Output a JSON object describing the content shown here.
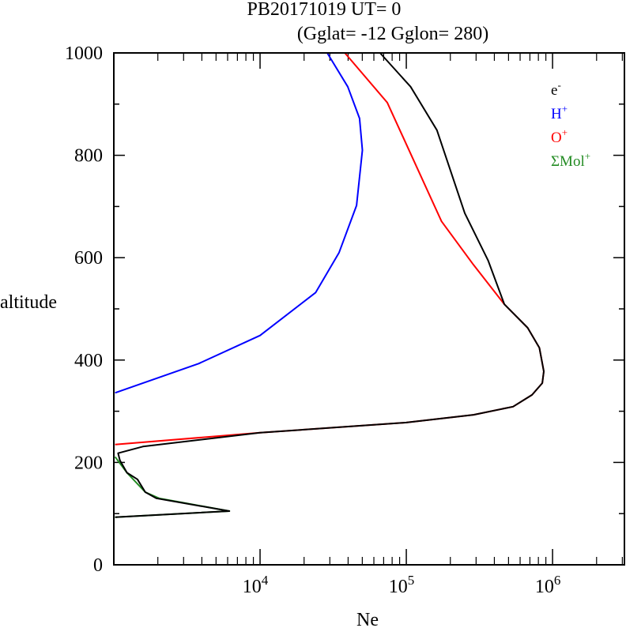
{
  "chart_data": {
    "type": "line",
    "title": "PB20171019   UT=  0",
    "subtitle": "(Gglat= -12   Gglon=  280)",
    "xlabel": "Ne",
    "ylabel": "altitude",
    "xscale": "log",
    "xlim": [
      1000,
      3100000
    ],
    "ylim": [
      0,
      1000
    ],
    "x_ticks": [
      {
        "value": 10000,
        "base": "10",
        "exp": "4"
      },
      {
        "value": 100000,
        "base": "10",
        "exp": "5"
      },
      {
        "value": 1000000,
        "base": "10",
        "exp": "6"
      }
    ],
    "y_ticks": [
      0,
      200,
      400,
      600,
      800,
      1000
    ],
    "legend_position": "top-right",
    "series": [
      {
        "name": "e",
        "sup": "-",
        "color": "#000000",
        "points": [
          [
            1020,
            93
          ],
          [
            6170,
            105
          ],
          [
            1950,
            130
          ],
          [
            1640,
            142
          ],
          [
            1450,
            167
          ],
          [
            1230,
            180
          ],
          [
            1100,
            204
          ],
          [
            1070,
            218
          ],
          [
            1580,
            231
          ],
          [
            10000,
            258
          ],
          [
            100000,
            278
          ],
          [
            288000,
            293
          ],
          [
            537000,
            309
          ],
          [
            724000,
            332
          ],
          [
            851000,
            355
          ],
          [
            871000,
            378
          ],
          [
            813000,
            424
          ],
          [
            676000,
            463
          ],
          [
            468000,
            509
          ],
          [
            363000,
            594
          ],
          [
            251000,
            687
          ],
          [
            162000,
            849
          ],
          [
            107000,
            934
          ],
          [
            66100,
            1000
          ]
        ]
      },
      {
        "name": "H",
        "sup": "+",
        "color": "#0000ff",
        "points": [
          [
            1020,
            336
          ],
          [
            3800,
            393
          ],
          [
            10000,
            448
          ],
          [
            24000,
            532
          ],
          [
            34700,
            610
          ],
          [
            45700,
            702
          ],
          [
            50100,
            810
          ],
          [
            47900,
            872
          ],
          [
            39800,
            934
          ],
          [
            28800,
            1000
          ]
        ]
      },
      {
        "name": "O",
        "sup": "+",
        "color": "#ff0000",
        "points": [
          [
            1020,
            235
          ],
          [
            10000,
            258
          ],
          [
            100000,
            278
          ],
          [
            288000,
            293
          ],
          [
            537000,
            309
          ],
          [
            724000,
            332
          ],
          [
            851000,
            355
          ],
          [
            871000,
            378
          ],
          [
            813000,
            424
          ],
          [
            676000,
            463
          ],
          [
            468000,
            509
          ],
          [
            288000,
            586
          ],
          [
            174000,
            671
          ],
          [
            120000,
            772
          ],
          [
            74100,
            903
          ],
          [
            38000,
            1000
          ]
        ]
      },
      {
        "name": "ΣMol",
        "sup": "+",
        "color": "#228b22",
        "points": [
          [
            1020,
            211
          ],
          [
            1230,
            180
          ],
          [
            1640,
            142
          ],
          [
            2040,
            130
          ],
          [
            6170,
            105
          ],
          [
            1020,
            93
          ]
        ]
      }
    ]
  }
}
